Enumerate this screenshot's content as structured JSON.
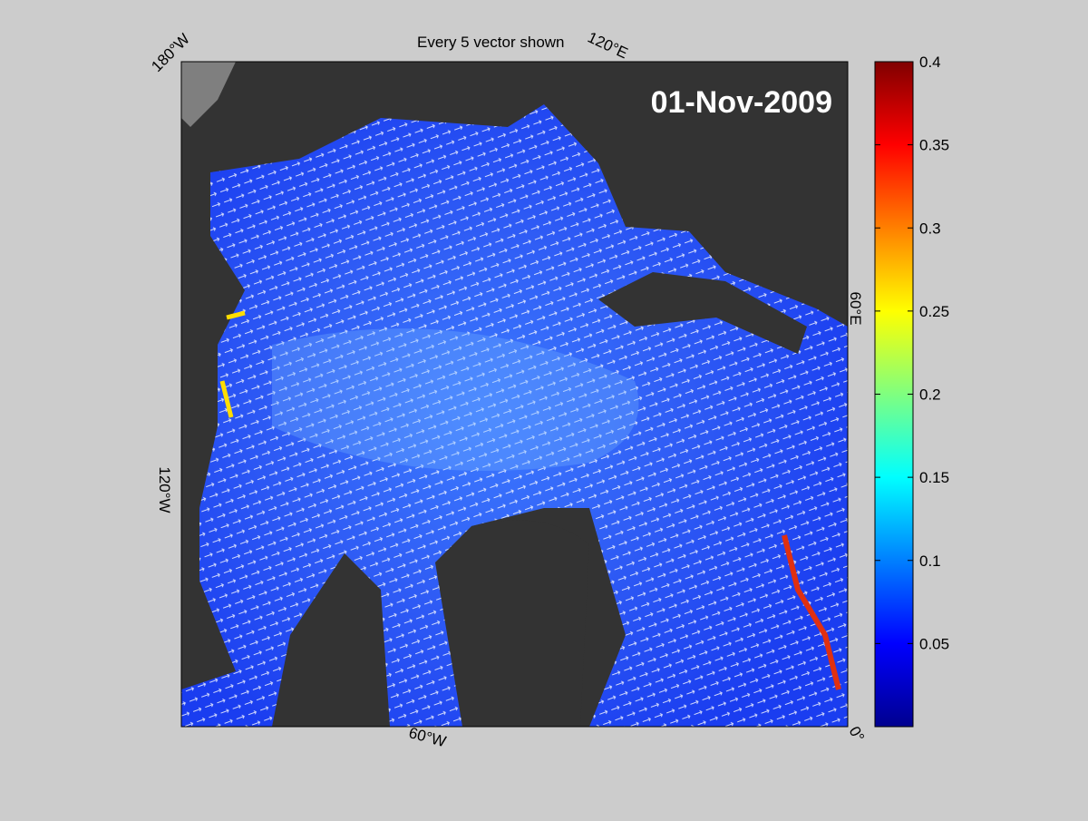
{
  "map": {
    "title": "Every 5 vector shown",
    "date": "01-Nov-2009",
    "lon_labels": [
      "180°W",
      "120°E",
      "60°E",
      "0°",
      "60°W",
      "120°W"
    ]
  },
  "colorbar": {
    "range": [
      0,
      0.4
    ],
    "ticks": [
      0.05,
      0.1,
      0.15,
      0.2,
      0.25,
      0.3,
      0.35,
      0.4
    ]
  }
}
